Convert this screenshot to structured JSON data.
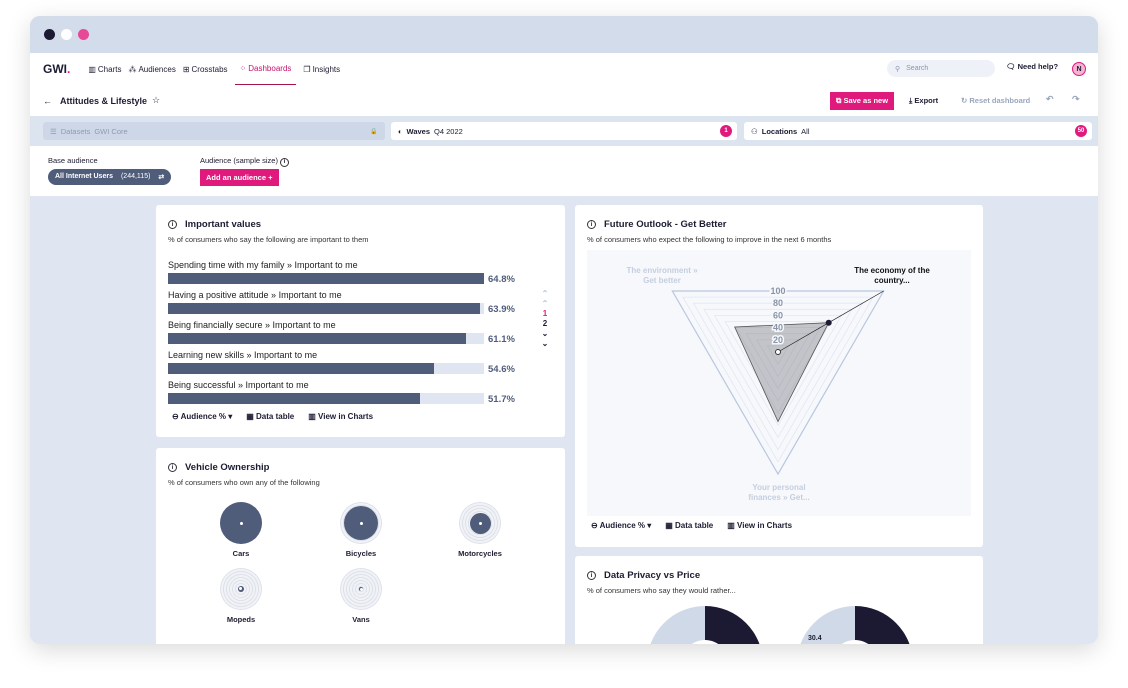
{
  "colors": {
    "accent": "#e0197d",
    "bar": "#4f5d7b",
    "track": "#dfe6f2",
    "dark": "#1c1a33"
  },
  "nav": {
    "logo": "GWI",
    "items": [
      {
        "label": "Charts",
        "icon": "bar-chart-icon"
      },
      {
        "label": "Audiences",
        "icon": "people-icon"
      },
      {
        "label": "Crosstabs",
        "icon": "grid-icon"
      },
      {
        "label": "Dashboards",
        "icon": "dashboard-icon",
        "active": true
      },
      {
        "label": "Insights",
        "icon": "insights-icon"
      }
    ],
    "search_placeholder": "Search",
    "help": "Need help?",
    "avatar": "N"
  },
  "page": {
    "title": "Attitudes & Lifestyle",
    "save_as_new": "Save as new",
    "export": "Export",
    "reset": "Reset dashboard"
  },
  "filters": {
    "datasets_label": "Datasets",
    "datasets_value": "GWI Core",
    "waves_label": "Waves",
    "waves_value": "Q4 2022",
    "waves_badge": "1",
    "locations_label": "Locations",
    "locations_value": "All",
    "locations_badge": "50"
  },
  "audience": {
    "base_label": "Base audience",
    "base_value": "All Internet Users",
    "base_count": "(244,115)",
    "sample_label": "Audience (sample size)",
    "add_button": "Add an audience"
  },
  "footer_actions": {
    "metric": "Audience %",
    "data_table": "Data table",
    "view_in_charts": "View in Charts"
  },
  "important_values": {
    "title": "Important values",
    "subtitle": "% of consumers who say the following are important to them",
    "pages": [
      "1",
      "2"
    ],
    "chart_data": {
      "type": "bar",
      "orientation": "horizontal",
      "categories": [
        "Spending time with my family » Important to me",
        "Having a positive attitude » Important to me",
        "Being financially secure » Important to me",
        "Learning new skills » Important to me",
        "Being successful » Important to me"
      ],
      "values": [
        64.8,
        63.9,
        61.1,
        54.6,
        51.7
      ],
      "labels": [
        "64.8%",
        "63.9%",
        "61.1%",
        "54.6%",
        "51.7%"
      ]
    }
  },
  "vehicle_ownership": {
    "title": "Vehicle Ownership",
    "subtitle": "% of consumers who own any of the following",
    "items": [
      {
        "label": "Cars",
        "level": 1.0
      },
      {
        "label": "Bicycles",
        "level": 0.82
      },
      {
        "label": "Motorcycles",
        "level": 0.5
      },
      {
        "label": "Mopeds",
        "level": 0.15
      },
      {
        "label": "Vans",
        "level": 0.03
      }
    ]
  },
  "future_outlook": {
    "title": "Future Outlook - Get Better",
    "subtitle": "% of consumers who expect the following to improve in the next 6 months",
    "chart_data": {
      "type": "radar",
      "axes": [
        "The economy of the country...",
        "Your personal finances » Get...",
        "The environment » Get better"
      ],
      "values": [
        48,
        57,
        41
      ],
      "ticks": [
        "20",
        "40",
        "60",
        "80",
        "100"
      ],
      "range": [
        0,
        100
      ],
      "highlighted": "The economy of the country..."
    }
  },
  "data_privacy": {
    "title": "Data Privacy vs Price",
    "subtitle": "% of consumers who say they would rather...",
    "visible_label": "30.4"
  }
}
